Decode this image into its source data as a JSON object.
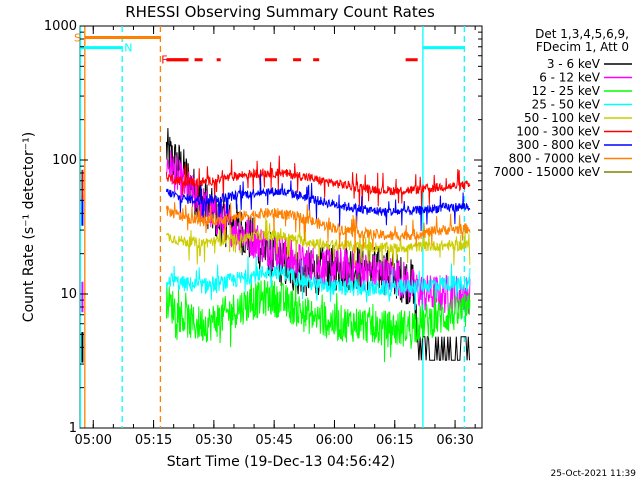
{
  "chart_data": {
    "type": "line",
    "title": "RHESSI Observing Summary Count Rates",
    "xlabel": "Start Time (19-Dec-13 04:56:42)",
    "ylabel": "Count Rate (s⁻¹ detector⁻¹)",
    "yscale": "log",
    "ylim": [
      1,
      1000
    ],
    "xlim_minutes": [
      0,
      100
    ],
    "x_units": "minutes since 04:56:42",
    "x_ticks": [
      {
        "label": "05:00",
        "t": 3.3
      },
      {
        "label": "05:15",
        "t": 18.3
      },
      {
        "label": "05:30",
        "t": 33.3
      },
      {
        "label": "05:45",
        "t": 48.3
      },
      {
        "label": "06:00",
        "t": 63.3
      },
      {
        "label": "06:15",
        "t": 78.3
      },
      {
        "label": "06:30",
        "t": 93.3
      }
    ],
    "y_ticks": [
      {
        "label": "1",
        "v": 1
      },
      {
        "label": "10",
        "v": 10
      },
      {
        "label": "100",
        "v": 100
      },
      {
        "label": "1000",
        "v": 1000
      }
    ],
    "legend": {
      "header": [
        "Det 1,3,4,5,6,9,",
        "FDecim 1, Att 0"
      ],
      "position": "top-right",
      "entries": [
        {
          "label": "3 - 6 keV",
          "color": "#000000"
        },
        {
          "label": "6 - 12 keV",
          "color": "#ff00ff"
        },
        {
          "label": "12 - 25 keV",
          "color": "#00ff00"
        },
        {
          "label": "25 - 50 keV",
          "color": "#00ffff"
        },
        {
          "label": "50 - 100 keV",
          "color": "#cccc00"
        },
        {
          "label": "100 - 300 keV",
          "color": "#ff0000"
        },
        {
          "label": "300 - 800 keV",
          "color": "#0000ff"
        },
        {
          "label": "800 - 7000 keV",
          "color": "#ff8000"
        },
        {
          "label": "7000 - 15000 keV",
          "color": "#808000"
        }
      ]
    },
    "series": [
      {
        "name": "3 - 6 keV",
        "color": "#000000",
        "noise": 0.18,
        "points": [
          [
            21.5,
            120
          ],
          [
            23,
            100
          ],
          [
            25,
            90
          ],
          [
            27,
            70
          ],
          [
            29,
            55
          ],
          [
            31,
            50
          ],
          [
            33,
            40
          ],
          [
            35,
            35
          ],
          [
            37,
            33
          ],
          [
            39,
            32
          ],
          [
            41,
            28
          ],
          [
            43,
            25
          ],
          [
            45,
            22
          ],
          [
            47,
            20
          ],
          [
            50,
            17
          ],
          [
            53,
            15
          ],
          [
            56,
            14
          ],
          [
            60,
            15
          ],
          [
            65,
            16
          ],
          [
            70,
            16
          ],
          [
            75,
            15
          ],
          [
            78,
            14
          ],
          [
            80,
            13
          ],
          [
            83,
            12
          ],
          [
            84,
            4
          ]
        ],
        "flat": [
          [
            84,
            4
          ],
          [
            97,
            4
          ]
        ]
      },
      {
        "name": "6 - 12 keV",
        "color": "#ff00ff",
        "noise": 0.15,
        "points": [
          [
            21.5,
            95
          ],
          [
            23,
            85
          ],
          [
            25,
            70
          ],
          [
            27,
            60
          ],
          [
            29,
            52
          ],
          [
            31,
            45
          ],
          [
            33,
            40
          ],
          [
            35,
            35
          ],
          [
            37,
            33
          ],
          [
            39,
            30
          ],
          [
            41,
            28
          ],
          [
            43,
            26
          ],
          [
            45,
            24
          ],
          [
            47,
            22
          ],
          [
            50,
            20
          ],
          [
            53,
            18
          ],
          [
            56,
            17
          ],
          [
            60,
            16
          ],
          [
            65,
            16
          ],
          [
            70,
            15
          ],
          [
            75,
            14
          ],
          [
            78,
            14
          ],
          [
            80,
            13
          ],
          [
            83,
            11
          ],
          [
            86,
            10
          ],
          [
            90,
            10
          ],
          [
            97,
            10
          ]
        ]
      },
      {
        "name": "12 - 25 keV",
        "color": "#00ff00",
        "noise": 0.14,
        "points": [
          [
            21.5,
            9
          ],
          [
            25,
            7
          ],
          [
            28,
            6
          ],
          [
            32,
            6
          ],
          [
            36,
            7
          ],
          [
            40,
            8
          ],
          [
            44,
            9
          ],
          [
            47,
            9.5
          ],
          [
            50,
            9
          ],
          [
            53,
            8
          ],
          [
            56,
            7
          ],
          [
            60,
            6.5
          ],
          [
            65,
            6
          ],
          [
            70,
            6
          ],
          [
            75,
            5.5
          ],
          [
            80,
            5.5
          ],
          [
            84,
            6
          ],
          [
            88,
            6.5
          ],
          [
            92,
            7
          ],
          [
            97,
            7.5
          ]
        ]
      },
      {
        "name": "25 - 50 keV",
        "color": "#00ffff",
        "noise": 0.06,
        "points": [
          [
            21.5,
            13
          ],
          [
            25,
            12
          ],
          [
            30,
            11.5
          ],
          [
            35,
            12
          ],
          [
            40,
            13
          ],
          [
            44,
            14
          ],
          [
            48,
            15
          ],
          [
            52,
            14
          ],
          [
            56,
            12.5
          ],
          [
            60,
            11.5
          ],
          [
            66,
            11
          ],
          [
            72,
            11
          ],
          [
            78,
            11
          ],
          [
            84,
            11.5
          ],
          [
            90,
            12
          ],
          [
            97,
            12
          ]
        ]
      },
      {
        "name": "50 - 100 keV",
        "color": "#cccc00",
        "noise": 0.04,
        "points": [
          [
            21.5,
            27
          ],
          [
            25,
            25
          ],
          [
            30,
            24
          ],
          [
            35,
            25
          ],
          [
            40,
            26
          ],
          [
            45,
            27.5
          ],
          [
            50,
            27
          ],
          [
            55,
            25
          ],
          [
            60,
            23.5
          ],
          [
            66,
            23
          ],
          [
            72,
            22.5
          ],
          [
            78,
            22
          ],
          [
            84,
            22.5
          ],
          [
            90,
            23
          ],
          [
            97,
            23
          ]
        ]
      },
      {
        "name": "100 - 300 keV",
        "color": "#ff0000",
        "noise": 0.035,
        "points": [
          [
            21.5,
            75
          ],
          [
            25,
            70
          ],
          [
            30,
            68
          ],
          [
            35,
            72
          ],
          [
            40,
            77
          ],
          [
            45,
            80
          ],
          [
            50,
            80
          ],
          [
            55,
            76
          ],
          [
            60,
            70
          ],
          [
            66,
            65
          ],
          [
            72,
            61
          ],
          [
            78,
            59
          ],
          [
            84,
            60
          ],
          [
            90,
            63
          ],
          [
            97,
            65
          ]
        ]
      },
      {
        "name": "300 - 800 keV",
        "color": "#0000ff",
        "noise": 0.035,
        "points": [
          [
            21.5,
            58
          ],
          [
            25,
            52
          ],
          [
            30,
            50
          ],
          [
            35,
            52
          ],
          [
            40,
            55
          ],
          [
            45,
            58
          ],
          [
            50,
            58
          ],
          [
            55,
            54
          ],
          [
            60,
            49
          ],
          [
            66,
            45
          ],
          [
            72,
            42
          ],
          [
            78,
            41
          ],
          [
            84,
            42
          ],
          [
            90,
            44
          ],
          [
            97,
            45
          ]
        ]
      },
      {
        "name": "800 - 7000 keV",
        "color": "#ff8000",
        "noise": 0.04,
        "points": [
          [
            21.5,
            42
          ],
          [
            25,
            38
          ],
          [
            30,
            35
          ],
          [
            35,
            36
          ],
          [
            40,
            38
          ],
          [
            45,
            40
          ],
          [
            50,
            40
          ],
          [
            55,
            37
          ],
          [
            60,
            33
          ],
          [
            66,
            30
          ],
          [
            72,
            28
          ],
          [
            78,
            27
          ],
          [
            84,
            28
          ],
          [
            90,
            30
          ],
          [
            97,
            31
          ]
        ]
      }
    ],
    "pre_window_marks": [
      {
        "color": "#ff00ff",
        "value": 9.5,
        "t": 0.6
      },
      {
        "color": "#000000",
        "value": 4,
        "t": 0.6
      },
      {
        "color": "#0000ff",
        "value": 42,
        "t": 0.6
      },
      {
        "color": "#ff0000",
        "value": 65,
        "t": 0.6
      }
    ],
    "flag_bars": [
      {
        "label": "S",
        "color": "#ff8000",
        "t_start": 1.2,
        "t_end": 20,
        "level": 820,
        "label_t": -1.5
      },
      {
        "label": "N",
        "color": "#00ffff",
        "t_start": 0,
        "t_end": 10.5,
        "level": 690,
        "label_t": 11.0
      },
      {
        "label": "N",
        "color": "#00ffff",
        "t_start": 85.3,
        "t_end": 95.6,
        "level": 690,
        "label_t": null
      },
      {
        "label": "F",
        "color": "#ff0000",
        "t_start": 21.5,
        "t_end": 27,
        "level": 560,
        "label_t": 20.2
      }
    ],
    "flare_segments": [
      [
        21.5,
        27
      ],
      [
        28.5,
        30.5
      ],
      [
        34,
        35
      ],
      [
        46,
        49
      ],
      [
        53,
        55
      ],
      [
        58,
        59.5
      ],
      [
        81,
        84
      ]
    ],
    "vlines": [
      {
        "t": 0.1,
        "color": "#00ffff",
        "style": "solid"
      },
      {
        "t": 1.2,
        "color": "#ff8000",
        "style": "solid"
      },
      {
        "t": 10.5,
        "color": "#00ffff",
        "style": "dashed"
      },
      {
        "t": 20.0,
        "color": "#ff8000",
        "style": "dashed"
      },
      {
        "t": 85.3,
        "color": "#00ffff",
        "style": "solid"
      },
      {
        "t": 95.6,
        "color": "#00ffff",
        "style": "dashed"
      }
    ],
    "timestamp": "25-Oct-2021 11:39"
  }
}
